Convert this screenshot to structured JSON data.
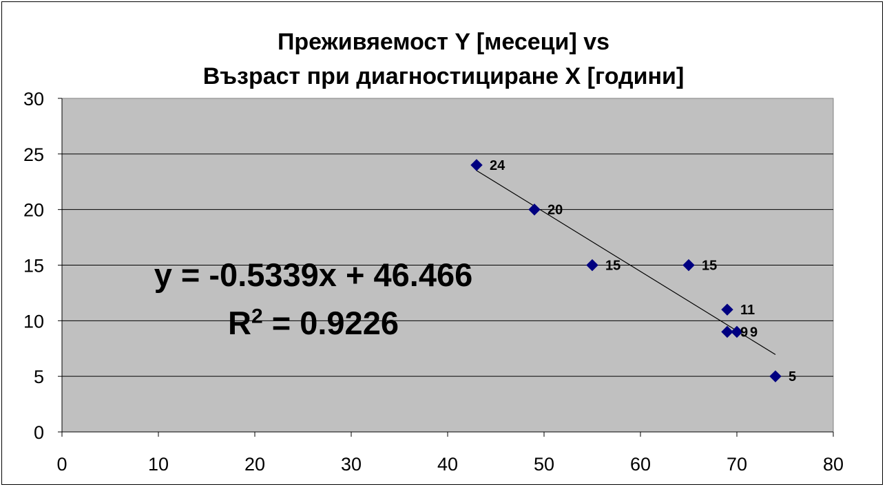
{
  "chart_data": {
    "type": "scatter",
    "title_lines": [
      "Преживяемост Y [месеци] vs",
      "Възраст при диагностициране X [години]"
    ],
    "xlim": [
      0,
      80
    ],
    "ylim": [
      0,
      30
    ],
    "x_ticks": [
      "0",
      "10",
      "20",
      "30",
      "40",
      "50",
      "60",
      "70",
      "80"
    ],
    "y_ticks": [
      "0",
      "5",
      "10",
      "15",
      "20",
      "25",
      "30"
    ],
    "grid": "horizontal",
    "plot_background": "#c0c0c0",
    "marker_color": "#000080",
    "series": [
      {
        "points": [
          {
            "x": 43,
            "y": 24,
            "label": "24"
          },
          {
            "x": 49,
            "y": 20,
            "label": "20"
          },
          {
            "x": 55,
            "y": 15,
            "label": "15"
          },
          {
            "x": 65,
            "y": 15,
            "label": "15"
          },
          {
            "x": 69,
            "y": 11,
            "label": "11"
          },
          {
            "x": 69,
            "y": 9,
            "label": "9"
          },
          {
            "x": 70,
            "y": 9,
            "label": "9"
          },
          {
            "x": 74,
            "y": 5,
            "label": "5"
          }
        ]
      }
    ],
    "trendline": {
      "type": "linear",
      "slope": -0.5339,
      "intercept": 46.466,
      "x_range": [
        43,
        74
      ]
    },
    "equation": "y = -0.5339x + 46.466",
    "r2_prefix": "R",
    "r2_exp": "2",
    "r2_value": " = 0.9226"
  }
}
